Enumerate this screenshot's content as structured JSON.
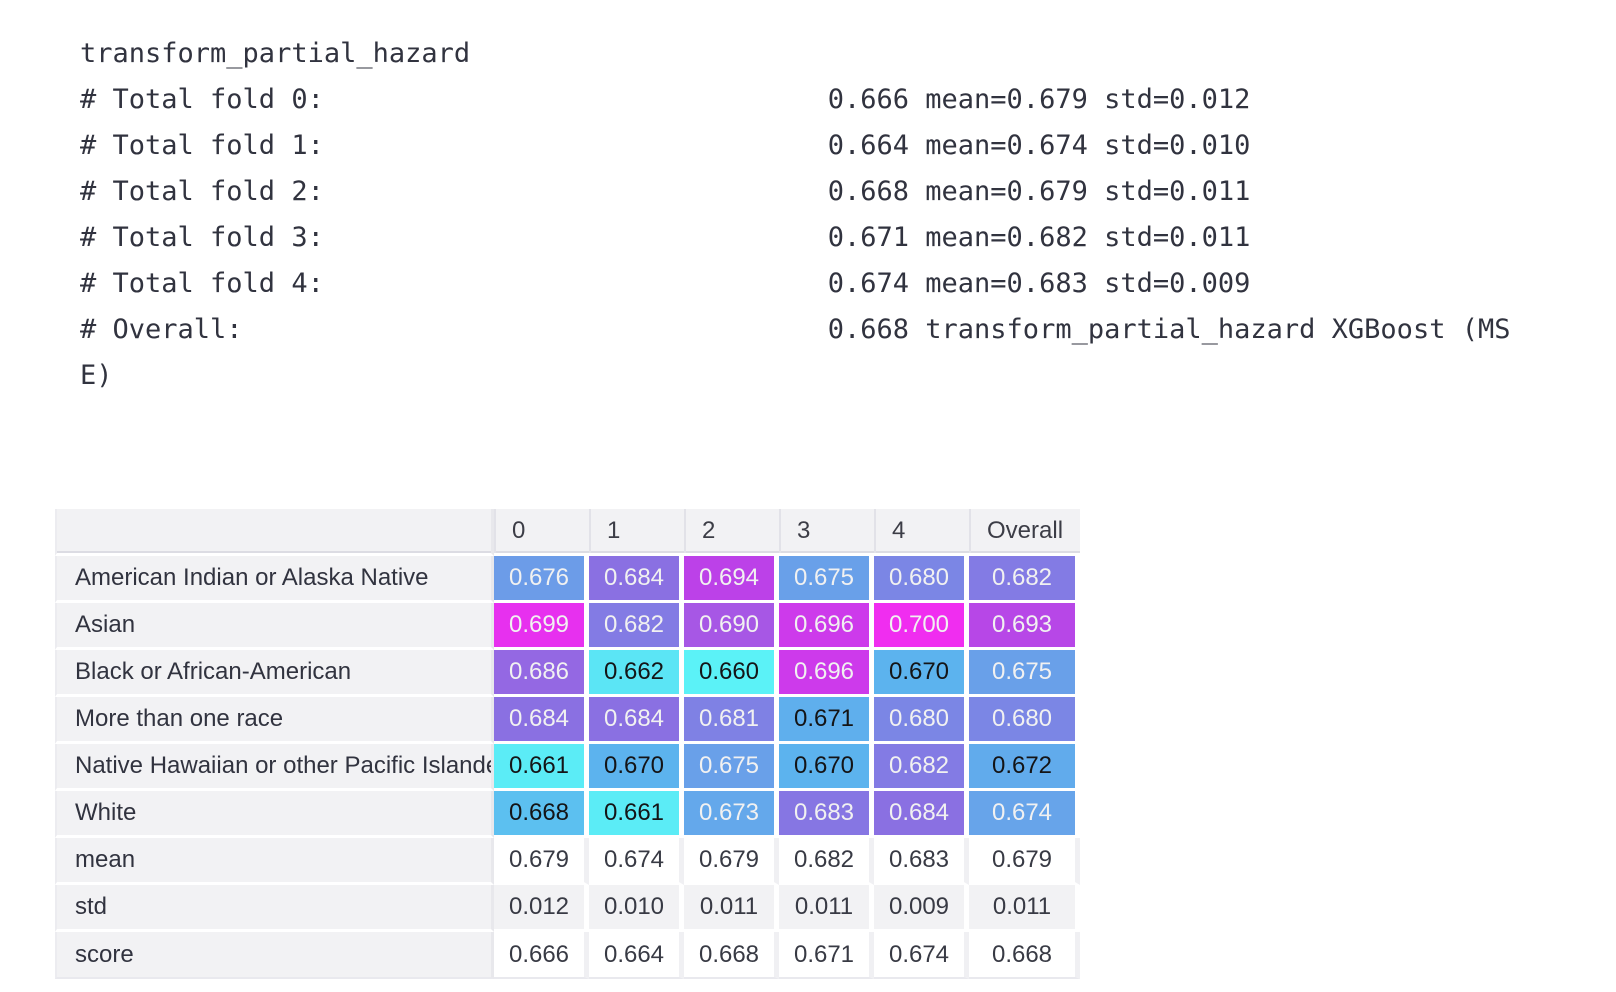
{
  "code": {
    "value_column": 46,
    "lines": [
      {
        "label": "transform_partial_hazard",
        "value": ""
      },
      {
        "label": "# Total fold 0:",
        "value": "0.666 mean=0.679 std=0.012"
      },
      {
        "label": "# Total fold 1:",
        "value": "0.664 mean=0.674 std=0.010"
      },
      {
        "label": "# Total fold 2:",
        "value": "0.668 mean=0.679 std=0.011"
      },
      {
        "label": "# Total fold 3:",
        "value": "0.671 mean=0.682 std=0.011"
      },
      {
        "label": "# Total fold 4:",
        "value": "0.674 mean=0.683 std=0.009"
      },
      {
        "label": "# Overall:",
        "value": "0.668 transform_partial_hazard XGBoost (MSE)"
      }
    ]
  },
  "table": {
    "columns": [
      "",
      "0",
      "1",
      "2",
      "3",
      "4",
      "Overall"
    ],
    "gradient": {
      "min_value": 0.66,
      "max_value": 0.7,
      "min_color": "#5bf2f7",
      "max_color": "#f02df0"
    },
    "rows": [
      {
        "label": "American Indian or Alaska Native",
        "plain": false,
        "band": "white",
        "cells": [
          {
            "v": "0.676",
            "bg": "#6c9ce8",
            "fg": "#f1f1f1"
          },
          {
            "v": "0.684",
            "bg": "#8a70e2",
            "fg": "#f1f1f1"
          },
          {
            "v": "0.694",
            "bg": "#bc41e8",
            "fg": "#f1f1f1"
          },
          {
            "v": "0.675",
            "bg": "#69a0e9",
            "fg": "#f1f1f1"
          },
          {
            "v": "0.680",
            "bg": "#7b86e5",
            "fg": "#f1f1f1"
          },
          {
            "v": "0.682",
            "bg": "#837be4",
            "fg": "#f1f1f1"
          }
        ]
      },
      {
        "label": "Asian",
        "plain": false,
        "band": "white",
        "cells": [
          {
            "v": "0.699",
            "bg": "#e730ef",
            "fg": "#f1f1f1"
          },
          {
            "v": "0.682",
            "bg": "#837be4",
            "fg": "#f1f1f1"
          },
          {
            "v": "0.690",
            "bg": "#a757e5",
            "fg": "#f1f1f1"
          },
          {
            "v": "0.696",
            "bg": "#cd3aeb",
            "fg": "#f1f1f1"
          },
          {
            "v": "0.700",
            "bg": "#f02df0",
            "fg": "#f1f1f1"
          },
          {
            "v": "0.693",
            "bg": "#b747e7",
            "fg": "#f1f1f1"
          }
        ]
      },
      {
        "label": "Black or African-American",
        "plain": false,
        "band": "white",
        "cells": [
          {
            "v": "0.686",
            "bg": "#9468e3",
            "fg": "#f1f1f1"
          },
          {
            "v": "0.662",
            "bg": "#5be5f5",
            "fg": "#141416"
          },
          {
            "v": "0.660",
            "bg": "#5bf2f7",
            "fg": "#141416"
          },
          {
            "v": "0.696",
            "bg": "#cd3aeb",
            "fg": "#f1f1f1"
          },
          {
            "v": "0.670",
            "bg": "#5cb3ee",
            "fg": "#141416"
          },
          {
            "v": "0.675",
            "bg": "#69a0e9",
            "fg": "#f1f1f1"
          }
        ]
      },
      {
        "label": "More than one race",
        "plain": false,
        "band": "white",
        "cells": [
          {
            "v": "0.684",
            "bg": "#8a70e2",
            "fg": "#f1f1f1"
          },
          {
            "v": "0.684",
            "bg": "#8a70e2",
            "fg": "#f1f1f1"
          },
          {
            "v": "0.681",
            "bg": "#7f81e4",
            "fg": "#f1f1f1"
          },
          {
            "v": "0.671",
            "bg": "#5fafed",
            "fg": "#141416"
          },
          {
            "v": "0.680",
            "bg": "#7b86e5",
            "fg": "#f1f1f1"
          },
          {
            "v": "0.680",
            "bg": "#7b86e5",
            "fg": "#f1f1f1"
          }
        ]
      },
      {
        "label": "Native Hawaiian or other Pacific Islander",
        "plain": false,
        "band": "white",
        "cells": [
          {
            "v": "0.661",
            "bg": "#5becf6",
            "fg": "#141416"
          },
          {
            "v": "0.670",
            "bg": "#5cb3ee",
            "fg": "#141416"
          },
          {
            "v": "0.675",
            "bg": "#69a0e9",
            "fg": "#f1f1f1"
          },
          {
            "v": "0.670",
            "bg": "#5cb3ee",
            "fg": "#141416"
          },
          {
            "v": "0.682",
            "bg": "#837be4",
            "fg": "#f1f1f1"
          },
          {
            "v": "0.672",
            "bg": "#61abec",
            "fg": "#141416"
          }
        ]
      },
      {
        "label": "White",
        "plain": false,
        "band": "white",
        "cells": [
          {
            "v": "0.668",
            "bg": "#5cc0f0",
            "fg": "#141416"
          },
          {
            "v": "0.661",
            "bg": "#5becf6",
            "fg": "#141416"
          },
          {
            "v": "0.673",
            "bg": "#64a8eb",
            "fg": "#f1f1f1"
          },
          {
            "v": "0.683",
            "bg": "#8676e3",
            "fg": "#f1f1f1"
          },
          {
            "v": "0.684",
            "bg": "#8a70e2",
            "fg": "#f1f1f1"
          },
          {
            "v": "0.674",
            "bg": "#67a4ea",
            "fg": "#f1f1f1"
          }
        ]
      },
      {
        "label": "mean",
        "plain": true,
        "band": "white",
        "cells": [
          {
            "v": "0.679"
          },
          {
            "v": "0.674"
          },
          {
            "v": "0.679"
          },
          {
            "v": "0.682"
          },
          {
            "v": "0.683"
          },
          {
            "v": "0.679"
          }
        ]
      },
      {
        "label": "std",
        "plain": true,
        "band": "gray",
        "cells": [
          {
            "v": "0.012"
          },
          {
            "v": "0.010"
          },
          {
            "v": "0.011"
          },
          {
            "v": "0.011"
          },
          {
            "v": "0.009"
          },
          {
            "v": "0.011"
          }
        ]
      },
      {
        "label": "score",
        "plain": true,
        "band": "white",
        "cells": [
          {
            "v": "0.666"
          },
          {
            "v": "0.664"
          },
          {
            "v": "0.668"
          },
          {
            "v": "0.671"
          },
          {
            "v": "0.674"
          },
          {
            "v": "0.668"
          }
        ]
      }
    ]
  },
  "colors": {
    "page_bg": "#ffffff",
    "text": "#31333f",
    "header_bg": "#f2f2f4",
    "cell_text_light": "#f1f1f1",
    "cell_text_dark": "#141416"
  }
}
